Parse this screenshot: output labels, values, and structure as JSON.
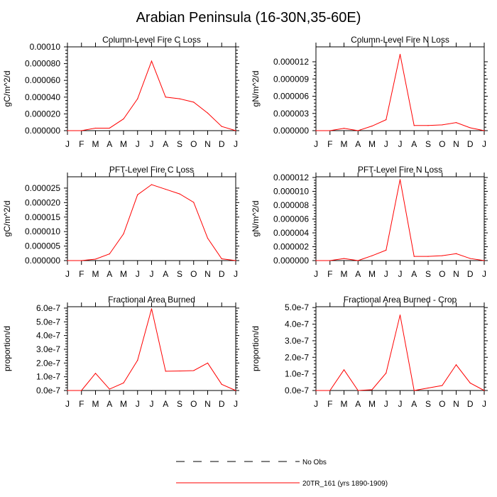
{
  "figure": {
    "title": "Arabian Peninsula (16-30N,35-60E)",
    "line_color": "#ff0000",
    "axis_color": "#000000"
  },
  "legend": {
    "items": [
      {
        "label": "No Obs",
        "style": "dashed",
        "color": "#000000"
      },
      {
        "label": "20TR_161 (yrs 1890-1909)",
        "style": "solid",
        "color": "#ff0000"
      }
    ]
  },
  "chart_data": [
    {
      "type": "line",
      "title": "Column-Level Fire C Loss",
      "xlabel": "",
      "ylabel": "gC/m^2/d",
      "categories": [
        "J",
        "F",
        "M",
        "A",
        "M",
        "J",
        "J",
        "A",
        "S",
        "O",
        "N",
        "D",
        "J"
      ],
      "ylim": [
        0,
        0.0001
      ],
      "yticks": [
        0,
        2e-05,
        4e-05,
        6e-05,
        8e-05,
        0.0001
      ],
      "yticklabels": [
        "0.000000",
        "0.000020",
        "0.000040",
        "0.000060",
        "0.000080",
        "0.00010"
      ],
      "series": [
        {
          "name": "20TR_161 (yrs 1890-1909)",
          "values": [
            0,
            0,
            3e-06,
            3e-06,
            1.4e-05,
            3.8e-05,
            8.3e-05,
            4e-05,
            3.8e-05,
            3.4e-05,
            2.1e-05,
            5e-06,
            0
          ]
        }
      ]
    },
    {
      "type": "line",
      "title": "Column-Level Fire N Loss",
      "xlabel": "",
      "ylabel": "gN/m^2/d",
      "categories": [
        "J",
        "F",
        "M",
        "A",
        "M",
        "J",
        "J",
        "A",
        "S",
        "O",
        "N",
        "D",
        "J"
      ],
      "ylim": [
        0,
        1.46e-05
      ],
      "yticks": [
        0,
        3e-06,
        6e-06,
        9e-06,
        1.2e-05
      ],
      "yticklabels": [
        "0.000000",
        "0.000003",
        "0.000006",
        "0.000009",
        "0.000012"
      ],
      "series": [
        {
          "name": "20TR_161 (yrs 1890-1909)",
          "values": [
            0,
            0,
            4e-07,
            0,
            8e-07,
            1.9e-06,
            1.33e-05,
            9e-07,
            9e-07,
            1e-06,
            1.4e-06,
            5e-07,
            0
          ]
        }
      ]
    },
    {
      "type": "line",
      "title": "PFT-Level Fire C Loss",
      "xlabel": "",
      "ylabel": "gC/m^2/d",
      "categories": [
        "J",
        "F",
        "M",
        "A",
        "M",
        "J",
        "J",
        "A",
        "S",
        "O",
        "N",
        "D",
        "J"
      ],
      "ylim": [
        0,
        2.89e-05
      ],
      "yticks": [
        0,
        5e-06,
        1e-05,
        1.5e-05,
        2e-05,
        2.5e-05
      ],
      "yticklabels": [
        "0.000000",
        "0.000005",
        "0.000010",
        "0.000015",
        "0.000020",
        "0.000025"
      ],
      "series": [
        {
          "name": "20TR_161 (yrs 1890-1909)",
          "values": [
            0,
            0,
            5e-07,
            2.3e-06,
            9.2e-06,
            2.27e-05,
            2.62e-05,
            2.46e-05,
            2.3e-05,
            2.01e-05,
            7.7e-06,
            6e-07,
            0
          ]
        }
      ]
    },
    {
      "type": "line",
      "title": "PFT-Level Fire N Loss",
      "xlabel": "",
      "ylabel": "gN/m^2/d",
      "categories": [
        "J",
        "F",
        "M",
        "A",
        "M",
        "J",
        "J",
        "A",
        "S",
        "O",
        "N",
        "D",
        "J"
      ],
      "ylim": [
        0,
        1.21e-05
      ],
      "yticks": [
        0,
        2e-06,
        4e-06,
        6e-06,
        8e-06,
        1e-05,
        1.2e-05
      ],
      "yticklabels": [
        "0.000000",
        "0.000002",
        "0.000004",
        "0.000006",
        "0.000008",
        "0.000010",
        "0.000012"
      ],
      "series": [
        {
          "name": "20TR_161 (yrs 1890-1909)",
          "values": [
            0,
            0,
            3e-07,
            0,
            7e-07,
            1.5e-06,
            1.17e-05,
            6e-07,
            6e-07,
            7e-07,
            1e-06,
            3e-07,
            0
          ]
        }
      ]
    },
    {
      "type": "line",
      "title": "Fractional Area Burned",
      "xlabel": "",
      "ylabel": "proportion/d",
      "categories": [
        "J",
        "F",
        "M",
        "A",
        "M",
        "J",
        "J",
        "A",
        "S",
        "O",
        "N",
        "D",
        "J"
      ],
      "ylim": [
        0,
        6.1e-07
      ],
      "yticks": [
        0,
        1e-07,
        2e-07,
        3e-07,
        4e-07,
        5e-07,
        6e-07
      ],
      "yticklabels": [
        "0.0e-7",
        "1.0e-7",
        "2.0e-7",
        "3.0e-7",
        "4.0e-7",
        "5.0e-7",
        "6.0e-7"
      ],
      "series": [
        {
          "name": "20TR_161 (yrs 1890-1909)",
          "values": [
            0,
            0,
            1.25e-07,
            1e-08,
            5.5e-08,
            2.2e-07,
            5.95e-07,
            1.4e-07,
            1.42e-07,
            1.45e-07,
            2e-07,
            4.5e-08,
            0
          ]
        }
      ]
    },
    {
      "type": "line",
      "title": "Fractional Area Burned - Crop",
      "xlabel": "",
      "ylabel": "proportion/d",
      "categories": [
        "J",
        "F",
        "M",
        "A",
        "M",
        "J",
        "J",
        "A",
        "S",
        "O",
        "N",
        "D",
        "J"
      ],
      "ylim": [
        0,
        5.05e-07
      ],
      "yticks": [
        0,
        1e-07,
        2e-07,
        3e-07,
        4e-07,
        5e-07
      ],
      "yticklabels": [
        "0.0e-7",
        "1.0e-7",
        "2.0e-7",
        "3.0e-7",
        "4.0e-7",
        "5.0e-7"
      ],
      "series": [
        {
          "name": "20TR_161 (yrs 1890-1909)",
          "values": [
            0,
            0,
            1.25e-07,
            0,
            5e-09,
            1.05e-07,
            4.55e-07,
            0,
            1.5e-08,
            3e-08,
            1.55e-07,
            4.5e-08,
            0
          ]
        }
      ]
    }
  ]
}
